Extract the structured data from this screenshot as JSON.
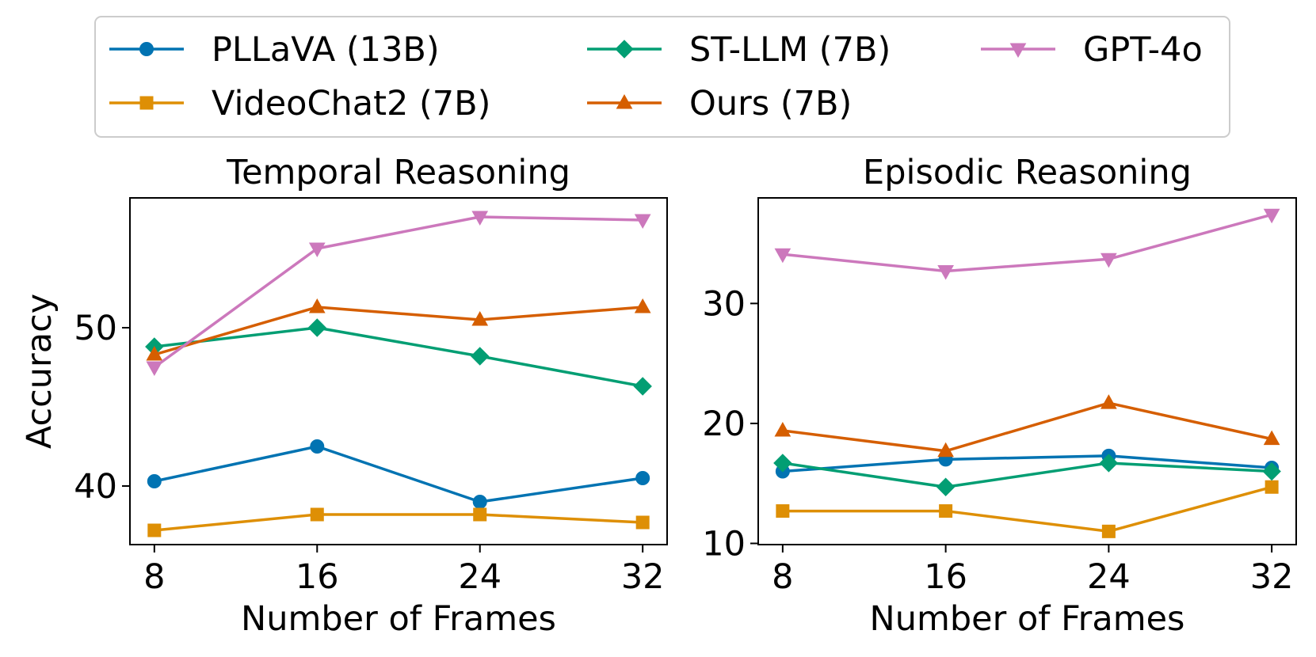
{
  "legend": {
    "placement": "top-center",
    "entries": [
      {
        "label": "PLLaVA (13B)",
        "color": "#0173b2",
        "marker": "circle"
      },
      {
        "label": "VideoChat2 (7B)",
        "color": "#de8f05",
        "marker": "square"
      },
      {
        "label": "ST-LLM (7B)",
        "color": "#029e73",
        "marker": "diamond"
      },
      {
        "label": "Ours (7B)",
        "color": "#d55e00",
        "marker": "triangle-up"
      },
      {
        "label": "GPT-4o",
        "color": "#cc78bc",
        "marker": "triangle-down"
      }
    ]
  },
  "chart_data": [
    {
      "type": "line",
      "title": "Temporal Reasoning",
      "xlabel": "Number of Frames",
      "ylabel": "Accuracy",
      "x": [
        8,
        16,
        24,
        32
      ],
      "xticks": [
        "8",
        "16",
        "24",
        "32"
      ],
      "yticks": [
        40,
        50
      ],
      "ytick_labels": [
        "40",
        "50"
      ],
      "xlim": [
        6.8,
        33.2
      ],
      "ylim": [
        36.3,
        58.2
      ],
      "grid": false,
      "series": [
        {
          "name": "PLLaVA (13B)",
          "values": [
            40.3,
            42.5,
            39.0,
            40.5
          ]
        },
        {
          "name": "VideoChat2 (7B)",
          "values": [
            37.2,
            38.2,
            38.2,
            37.7
          ]
        },
        {
          "name": "ST-LLM (7B)",
          "values": [
            48.8,
            50.0,
            48.2,
            46.3
          ]
        },
        {
          "name": "Ours (7B)",
          "values": [
            48.3,
            51.3,
            50.5,
            51.3
          ]
        },
        {
          "name": "GPT-4o",
          "values": [
            47.5,
            55.0,
            57.0,
            56.8
          ]
        }
      ]
    },
    {
      "type": "line",
      "title": "Episodic Reasoning",
      "xlabel": "Number of Frames",
      "ylabel": "",
      "x": [
        8,
        16,
        24,
        32
      ],
      "xticks": [
        "8",
        "16",
        "24",
        "32"
      ],
      "yticks": [
        10,
        20,
        30
      ],
      "ytick_labels": [
        "10",
        "20",
        "30"
      ],
      "xlim": [
        6.8,
        33.2
      ],
      "ylim": [
        9.9,
        38.8
      ],
      "grid": false,
      "series": [
        {
          "name": "PLLaVA (13B)",
          "values": [
            16.0,
            17.0,
            17.3,
            16.3
          ]
        },
        {
          "name": "VideoChat2 (7B)",
          "values": [
            12.7,
            12.7,
            11.0,
            14.7
          ]
        },
        {
          "name": "ST-LLM (7B)",
          "values": [
            16.7,
            14.7,
            16.7,
            16.0
          ]
        },
        {
          "name": "Ours (7B)",
          "values": [
            19.4,
            17.7,
            21.7,
            18.7
          ]
        },
        {
          "name": "GPT-4o",
          "values": [
            34.1,
            32.7,
            33.7,
            37.4
          ]
        }
      ]
    }
  ]
}
